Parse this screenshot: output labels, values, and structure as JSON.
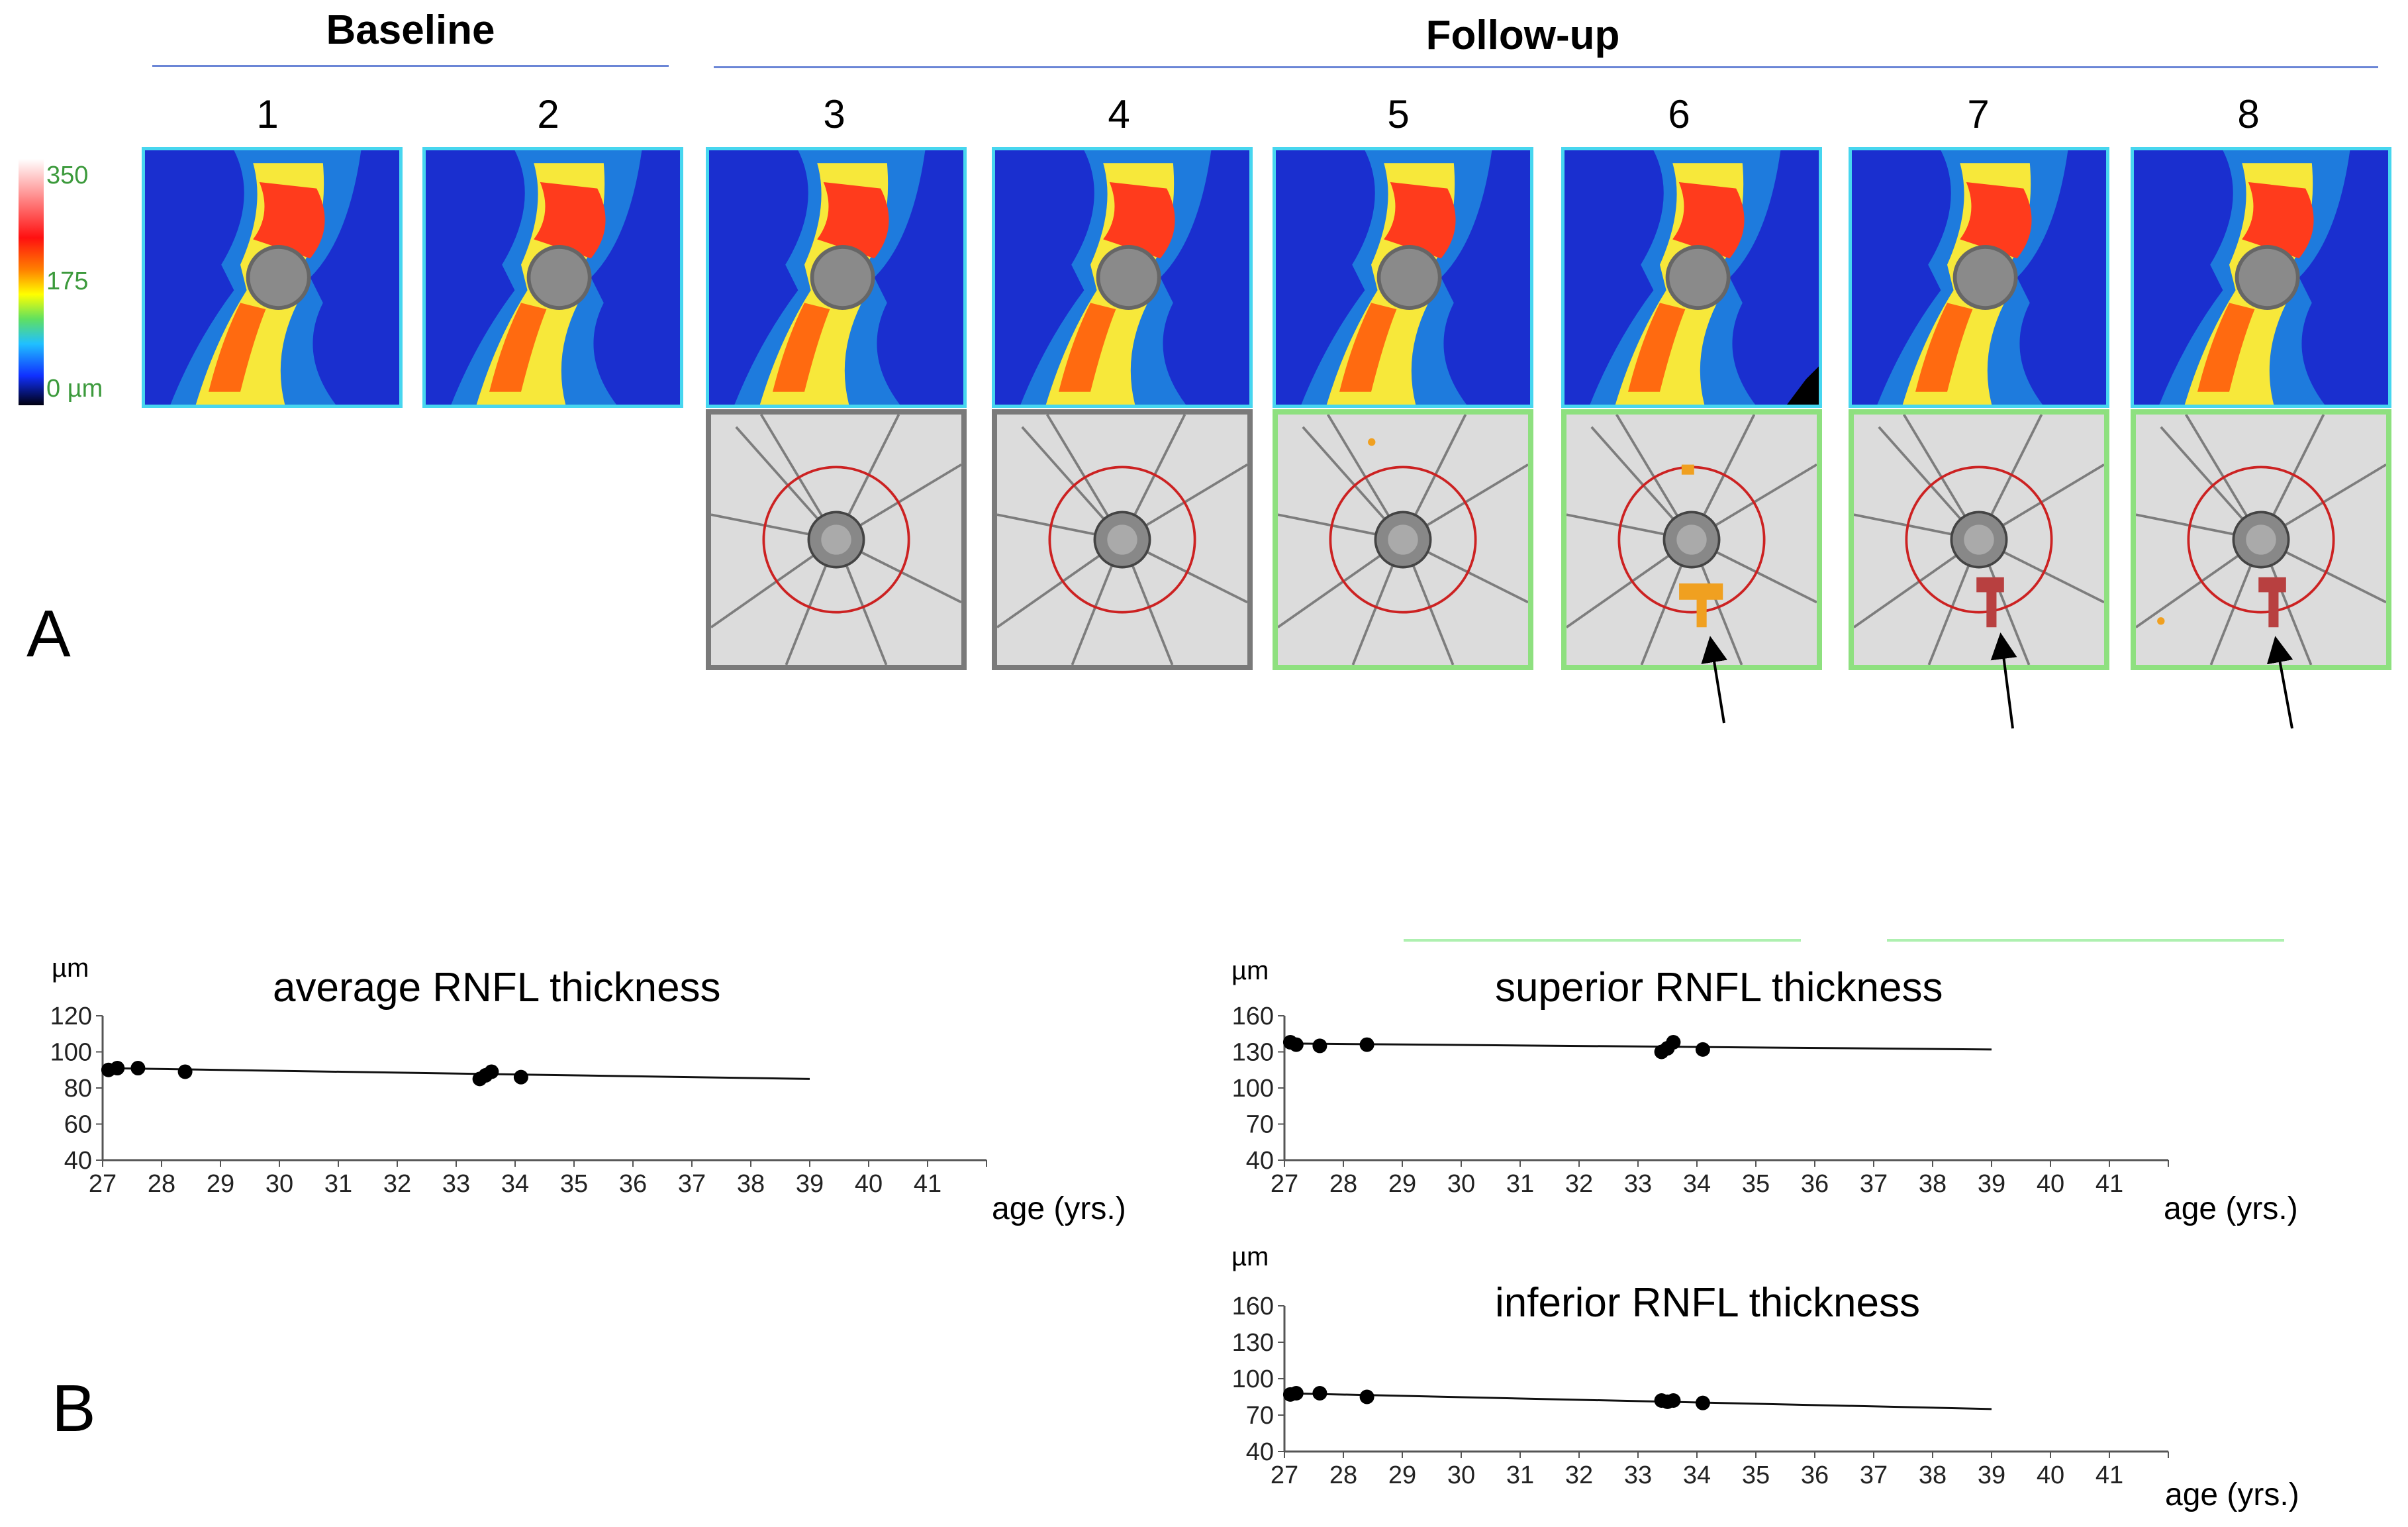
{
  "groups": {
    "baseline": "Baseline",
    "followup": "Follow-up"
  },
  "scans": [
    "1",
    "2",
    "3",
    "4",
    "5",
    "6",
    "7",
    "8"
  ],
  "colorscale": {
    "max": "350",
    "mid": "175",
    "min": "0 µm"
  },
  "panels": {
    "a": "A",
    "b": "B"
  },
  "colors": {
    "group_line": "#6b86d6",
    "heatmap_border": "#47d6ef",
    "fundus_border_gray": "#7a7a7a",
    "fundus_border_green": "#8ee07f",
    "orange_change": "#f0a020",
    "red_change": "#b84040",
    "circle": "#cc2222"
  },
  "chart_data": [
    {
      "type": "scatter",
      "title": "average RNFL thickness",
      "ylabel": "µm",
      "xlabel": "age (yrs.)",
      "x_ticks": [
        "27",
        "28",
        "29",
        "30",
        "31",
        "32",
        "33",
        "34",
        "35",
        "36",
        "37",
        "38",
        "39",
        "40",
        "41"
      ],
      "y_ticks": [
        "40",
        "60",
        "80",
        "100",
        "120"
      ],
      "xlim": [
        27,
        42
      ],
      "ylim": [
        40,
        120
      ],
      "points": [
        [
          27.1,
          90
        ],
        [
          27.25,
          91
        ],
        [
          27.6,
          91
        ],
        [
          28.4,
          89
        ],
        [
          33.4,
          85
        ],
        [
          33.5,
          87
        ],
        [
          33.6,
          89
        ],
        [
          34.1,
          86
        ]
      ],
      "trend": [
        [
          27,
          91
        ],
        [
          39,
          85
        ]
      ]
    },
    {
      "type": "scatter",
      "title": "superior RNFL thickness",
      "ylabel": "µm",
      "xlabel": "age (yrs.)",
      "x_ticks": [
        "27",
        "28",
        "29",
        "30",
        "31",
        "32",
        "33",
        "34",
        "35",
        "36",
        "37",
        "38",
        "39",
        "40",
        "41"
      ],
      "y_ticks": [
        "40",
        "70",
        "100",
        "130",
        "160"
      ],
      "xlim": [
        27,
        42
      ],
      "ylim": [
        40,
        160
      ],
      "points": [
        [
          27.1,
          138
        ],
        [
          27.2,
          136
        ],
        [
          27.6,
          135
        ],
        [
          28.4,
          136
        ],
        [
          33.4,
          130
        ],
        [
          33.5,
          133
        ],
        [
          33.6,
          138
        ],
        [
          34.1,
          132
        ]
      ],
      "trend": [
        [
          27,
          137
        ],
        [
          39,
          132
        ]
      ]
    },
    {
      "type": "scatter",
      "title": "inferior RNFL thickness",
      "ylabel": "µm",
      "xlabel": "age (yrs.)",
      "x_ticks": [
        "27",
        "28",
        "29",
        "30",
        "31",
        "32",
        "33",
        "34",
        "35",
        "36",
        "37",
        "38",
        "39",
        "40",
        "41"
      ],
      "y_ticks": [
        "40",
        "70",
        "100",
        "130",
        "160"
      ],
      "xlim": [
        27,
        42
      ],
      "ylim": [
        40,
        160
      ],
      "points": [
        [
          27.1,
          87
        ],
        [
          27.2,
          88
        ],
        [
          27.6,
          88
        ],
        [
          28.4,
          85
        ],
        [
          33.4,
          82
        ],
        [
          33.5,
          81
        ],
        [
          33.6,
          82
        ],
        [
          34.1,
          80
        ]
      ],
      "trend": [
        [
          27,
          88
        ],
        [
          39,
          75
        ]
      ]
    }
  ]
}
